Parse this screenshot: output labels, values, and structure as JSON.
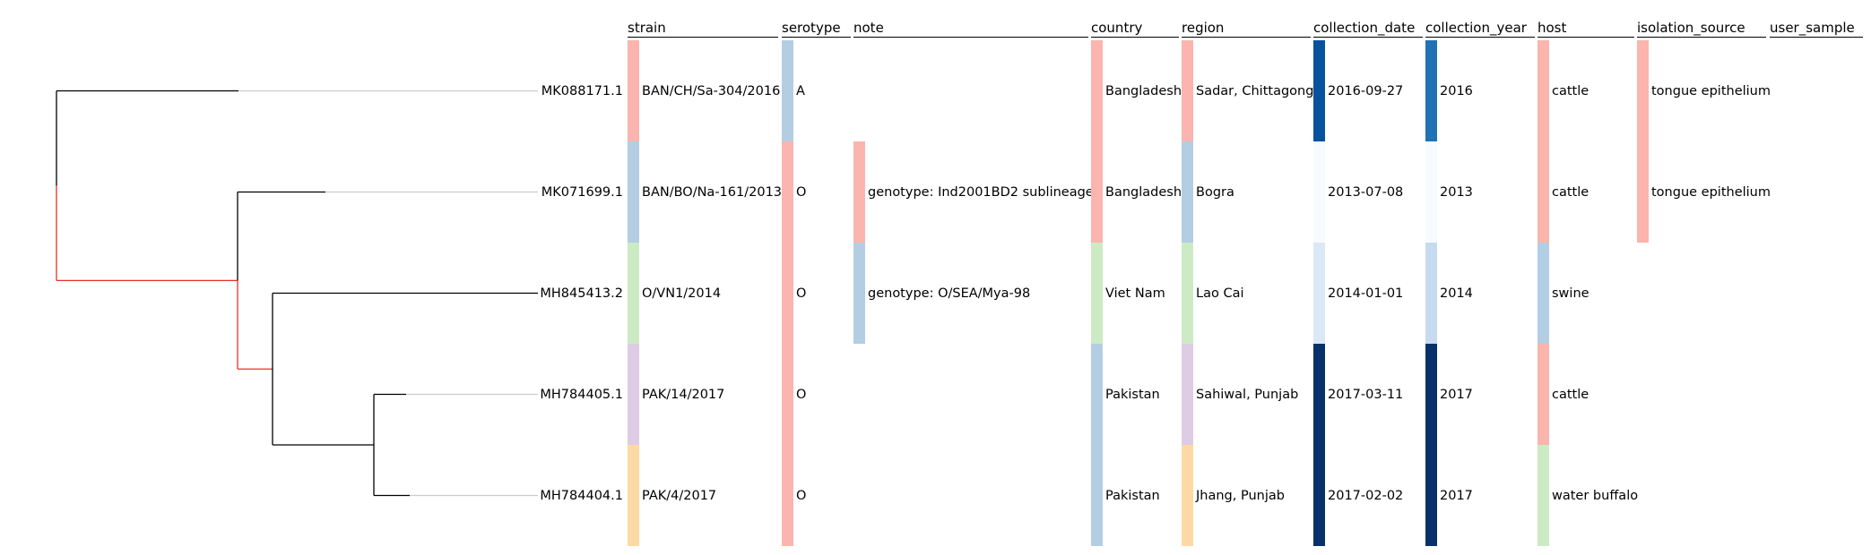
{
  "tree": {
    "leaves": [
      "MK088171.1",
      "MK071699.1",
      "MH845413.2",
      "MH784405.1",
      "MH784404.1"
    ],
    "line_color": "#000000",
    "extension_color": "#cccccc",
    "highlight_color": "#e8302a"
  },
  "columns": [
    {
      "key": "strain",
      "header": "strain"
    },
    {
      "key": "serotype",
      "header": "serotype"
    },
    {
      "key": "note",
      "header": "note"
    },
    {
      "key": "country",
      "header": "country"
    },
    {
      "key": "region",
      "header": "region"
    },
    {
      "key": "collection_date",
      "header": "collection_date"
    },
    {
      "key": "collection_year",
      "header": "collection_year"
    },
    {
      "key": "host",
      "header": "host"
    },
    {
      "key": "isolation_source",
      "header": "isolation_source"
    },
    {
      "key": "user_sample",
      "header": "user_sample"
    }
  ],
  "rows": [
    {
      "strain": {
        "text": "BAN/CH/Sa-304/2016",
        "color": "#fbb4ae"
      },
      "serotype": {
        "text": "A",
        "color": "#b3cde3"
      },
      "note": {
        "text": "",
        "color": ""
      },
      "country": {
        "text": "Bangladesh",
        "color": "#fbb4ae"
      },
      "region": {
        "text": "Sadar, Chittagong",
        "color": "#fbb4ae"
      },
      "collection_date": {
        "text": "2016-09-27",
        "color": "#08519c"
      },
      "collection_year": {
        "text": "2016",
        "color": "#2171b5"
      },
      "host": {
        "text": "cattle",
        "color": "#fbb4ae"
      },
      "isolation_source": {
        "text": "tongue epithelium",
        "color": "#fbb4ae"
      },
      "user_sample": {
        "text": "",
        "color": ""
      }
    },
    {
      "strain": {
        "text": "BAN/BO/Na-161/2013",
        "color": "#b3cde3"
      },
      "serotype": {
        "text": "O",
        "color": "#fbb4ae"
      },
      "note": {
        "text": "genotype: Ind2001BD2 sublineage",
        "color": "#fbb4ae"
      },
      "country": {
        "text": "Bangladesh",
        "color": "#fbb4ae"
      },
      "region": {
        "text": "Bogra",
        "color": "#b3cde3"
      },
      "collection_date": {
        "text": "2013-07-08",
        "color": "#f7fbff"
      },
      "collection_year": {
        "text": "2013",
        "color": "#f7fbff"
      },
      "host": {
        "text": "cattle",
        "color": "#fbb4ae"
      },
      "isolation_source": {
        "text": "tongue epithelium",
        "color": "#fbb4ae"
      },
      "user_sample": {
        "text": "",
        "color": ""
      }
    },
    {
      "strain": {
        "text": "O/VN1/2014",
        "color": "#ccebc5"
      },
      "serotype": {
        "text": "O",
        "color": "#fbb4ae"
      },
      "note": {
        "text": "genotype: O/SEA/Mya-98",
        "color": "#b3cde3"
      },
      "country": {
        "text": "Viet Nam",
        "color": "#ccebc5"
      },
      "region": {
        "text": "Lao Cai",
        "color": "#ccebc5"
      },
      "collection_date": {
        "text": "2014-01-01",
        "color": "#dbe9f6"
      },
      "collection_year": {
        "text": "2014",
        "color": "#c6dbef"
      },
      "host": {
        "text": "swine",
        "color": "#b3cde3"
      },
      "isolation_source": {
        "text": "",
        "color": ""
      },
      "user_sample": {
        "text": "",
        "color": ""
      }
    },
    {
      "strain": {
        "text": "PAK/14/2017",
        "color": "#decbe4"
      },
      "serotype": {
        "text": "O",
        "color": "#fbb4ae"
      },
      "note": {
        "text": "",
        "color": ""
      },
      "country": {
        "text": "Pakistan",
        "color": "#b3cde3"
      },
      "region": {
        "text": "Sahiwal, Punjab",
        "color": "#decbe4"
      },
      "collection_date": {
        "text": "2017-03-11",
        "color": "#08306b"
      },
      "collection_year": {
        "text": "2017",
        "color": "#08306b"
      },
      "host": {
        "text": "cattle",
        "color": "#fbb4ae"
      },
      "isolation_source": {
        "text": "",
        "color": ""
      },
      "user_sample": {
        "text": "",
        "color": ""
      }
    },
    {
      "strain": {
        "text": "PAK/4/2017",
        "color": "#fed9a6"
      },
      "serotype": {
        "text": "O",
        "color": "#fbb4ae"
      },
      "note": {
        "text": "",
        "color": ""
      },
      "country": {
        "text": "Pakistan",
        "color": "#b3cde3"
      },
      "region": {
        "text": "Jhang, Punjab",
        "color": "#fed9a6"
      },
      "collection_date": {
        "text": "2017-02-02",
        "color": "#08306b"
      },
      "collection_year": {
        "text": "2017",
        "color": "#08306b"
      },
      "host": {
        "text": "water buffalo",
        "color": "#ccebc5"
      },
      "isolation_source": {
        "text": "",
        "color": ""
      },
      "user_sample": {
        "text": "",
        "color": ""
      }
    }
  ]
}
